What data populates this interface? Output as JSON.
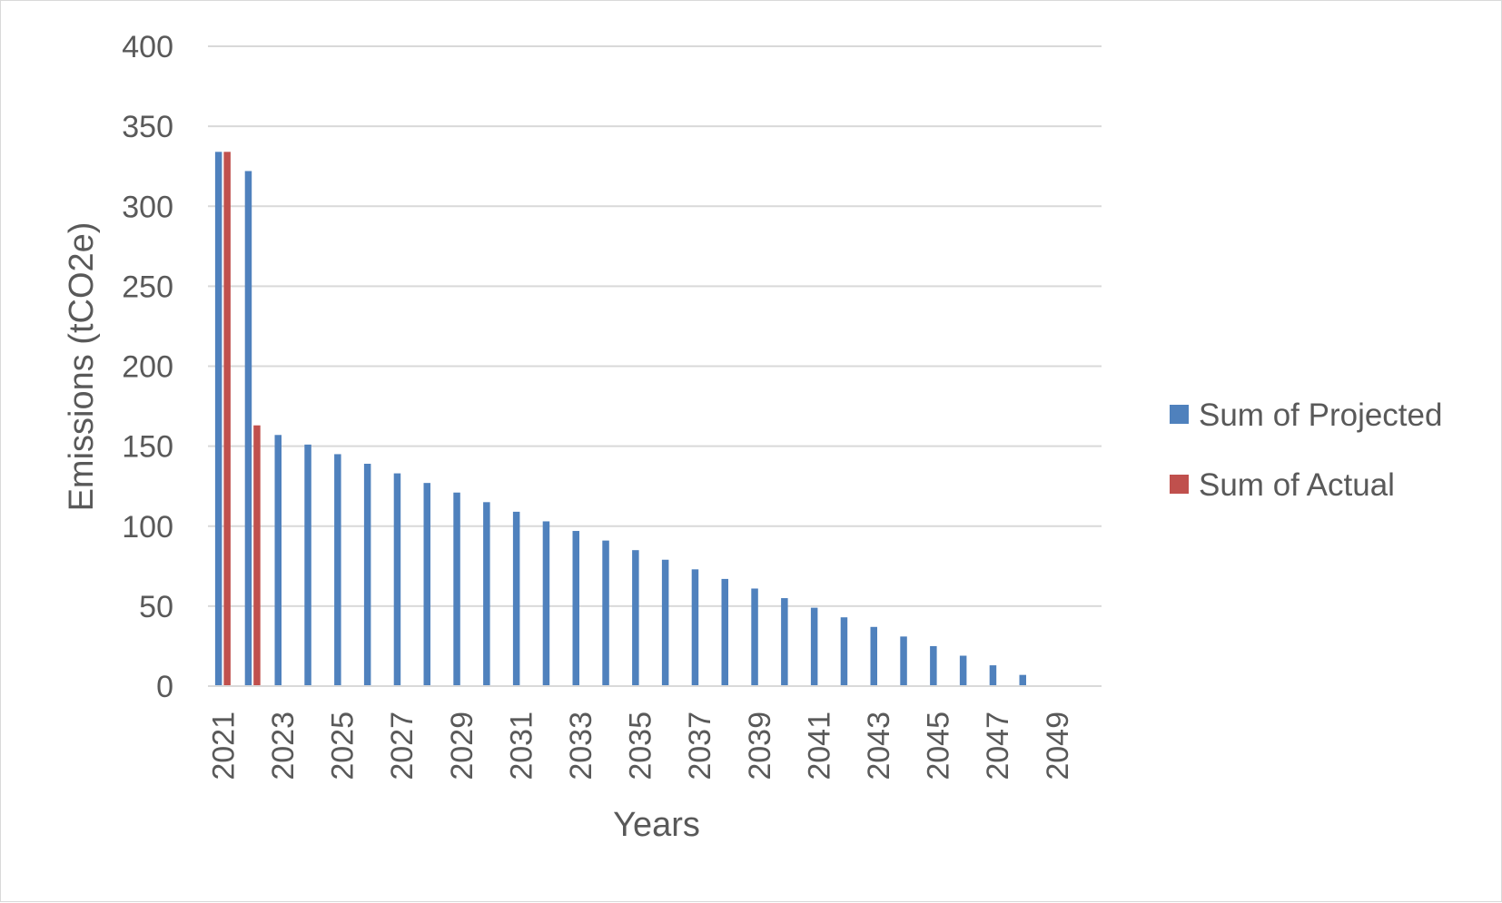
{
  "chart_data": {
    "type": "bar",
    "title": "",
    "xlabel": "Years",
    "ylabel": "Emissions (tCO2e)",
    "ylim": [
      0,
      400
    ],
    "yticks": [
      0,
      50,
      100,
      150,
      200,
      250,
      300,
      350,
      400
    ],
    "grid": true,
    "legend_position": "right",
    "categories": [
      "2021",
      "2022",
      "2023",
      "2024",
      "2025",
      "2026",
      "2027",
      "2028",
      "2029",
      "2030",
      "2031",
      "2032",
      "2033",
      "2034",
      "2035",
      "2036",
      "2037",
      "2038",
      "2039",
      "2040",
      "2041",
      "2042",
      "2043",
      "2044",
      "2045",
      "2046",
      "2047",
      "2048",
      "2049",
      "2050"
    ],
    "xtick_labels": [
      "2021",
      "2023",
      "2025",
      "2027",
      "2029",
      "2031",
      "2033",
      "2035",
      "2037",
      "2039",
      "2041",
      "2043",
      "2045",
      "2047",
      "2049"
    ],
    "series": [
      {
        "name": "Sum of Projected",
        "color": "#4f81bd",
        "values": [
          334,
          322,
          157,
          151,
          145,
          139,
          133,
          127,
          121,
          115,
          109,
          103,
          97,
          91,
          85,
          79,
          73,
          67,
          61,
          55,
          49,
          43,
          37,
          31,
          25,
          19,
          13,
          7,
          0,
          0
        ]
      },
      {
        "name": "Sum of Actual",
        "color": "#c0504d",
        "values": [
          334,
          163,
          null,
          null,
          null,
          null,
          null,
          null,
          null,
          null,
          null,
          null,
          null,
          null,
          null,
          null,
          null,
          null,
          null,
          null,
          null,
          null,
          null,
          null,
          null,
          null,
          null,
          null,
          null,
          null
        ]
      }
    ]
  }
}
